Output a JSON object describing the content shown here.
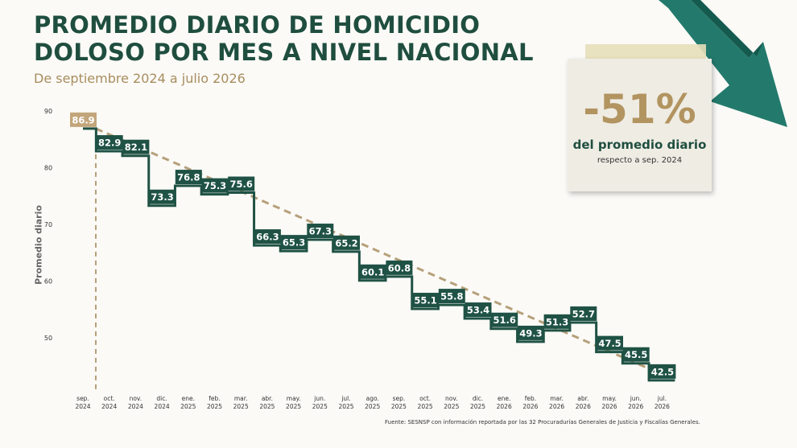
{
  "header": {
    "title_line1": "PROMEDIO DIARIO DE HOMICIDIO",
    "title_line2": "DOLOSO POR MES A NIVEL NACIONAL",
    "subtitle": "De septiembre 2024 a julio 2026"
  },
  "callout": {
    "value": "-51%",
    "line1": "del promedio diario",
    "line2": "respecto a sep. 2024"
  },
  "source": "Fuente: SESNSP con información reportada por las 32 Procuradurías Generales de Justicia y Fiscalías Generales.",
  "colors": {
    "accent": "#1f5244",
    "gold": "#c2a57a",
    "arrow": "#2a8a7a"
  },
  "chart_data": {
    "type": "line",
    "ylabel": "Promedio diario",
    "ylim": [
      40,
      90
    ],
    "yticks": [
      50,
      60,
      70,
      80,
      90
    ],
    "grid": false,
    "categories": [
      [
        "sep.",
        "2024"
      ],
      [
        "oct.",
        "2024"
      ],
      [
        "nov.",
        "2024"
      ],
      [
        "dic.",
        "2024"
      ],
      [
        "ene.",
        "2025"
      ],
      [
        "feb.",
        "2025"
      ],
      [
        "mar.",
        "2025"
      ],
      [
        "abr.",
        "2025"
      ],
      [
        "may.",
        "2025"
      ],
      [
        "jun.",
        "2025"
      ],
      [
        "jul.",
        "2025"
      ],
      [
        "ago.",
        "2025"
      ],
      [
        "sep.",
        "2025"
      ],
      [
        "oct.",
        "2025"
      ],
      [
        "nov.",
        "2025"
      ],
      [
        "dic.",
        "2025"
      ],
      [
        "ene.",
        "2026"
      ],
      [
        "feb.",
        "2026"
      ],
      [
        "mar.",
        "2026"
      ],
      [
        "abr.",
        "2026"
      ],
      [
        "may.",
        "2026"
      ],
      [
        "jun.",
        "2026"
      ],
      [
        "jul.",
        "2026"
      ]
    ],
    "values": [
      86.9,
      82.9,
      82.1,
      73.3,
      76.8,
      75.3,
      75.6,
      66.3,
      65.3,
      67.3,
      65.2,
      60.1,
      60.8,
      55.1,
      55.8,
      53.4,
      51.6,
      49.3,
      51.3,
      52.7,
      47.5,
      45.5,
      42.5
    ],
    "labels": [
      "86.9",
      "82.9",
      "82.1",
      "73.3",
      "76.8",
      "75.3",
      "75.6",
      "66.3",
      "65.3",
      "67.3",
      "65.2",
      "60.1",
      "60.8",
      "55.1",
      "55.8",
      "53.4",
      "51.6",
      "49.3",
      "51.3",
      "52.7",
      "47.5",
      "45.5",
      "42.5"
    ],
    "trendline": {
      "from": 86.9,
      "to": 42.5
    }
  }
}
